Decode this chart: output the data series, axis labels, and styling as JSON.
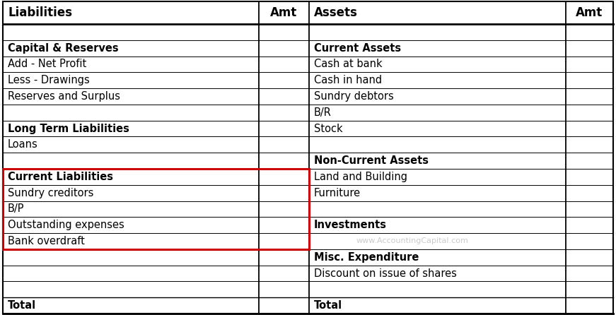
{
  "background_color": "#ffffff",
  "red_border_color": "#cc0000",
  "watermark": "www.AccountingCapital.com",
  "headers": [
    "Liabilities",
    "Amt",
    "Assets",
    "Amt"
  ],
  "rows": [
    {
      "left": "",
      "right": "",
      "left_bold": false,
      "right_bold": false,
      "blank": true
    },
    {
      "left": "Capital & Reserves",
      "right": "Current Assets",
      "left_bold": true,
      "right_bold": true,
      "blank": false
    },
    {
      "left": "Add - Net Profit",
      "right": "Cash at bank",
      "left_bold": false,
      "right_bold": false,
      "blank": false
    },
    {
      "left": "Less - Drawings",
      "right": "Cash in hand",
      "left_bold": false,
      "right_bold": false,
      "blank": false
    },
    {
      "left": "Reserves and Surplus",
      "right": "Sundry debtors",
      "left_bold": false,
      "right_bold": false,
      "blank": false
    },
    {
      "left": "",
      "right": "B/R",
      "left_bold": false,
      "right_bold": false,
      "blank": false
    },
    {
      "left": "Long Term Liabilities",
      "right": "Stock",
      "left_bold": true,
      "right_bold": false,
      "blank": false
    },
    {
      "left": "Loans",
      "right": "",
      "left_bold": false,
      "right_bold": false,
      "blank": false
    },
    {
      "left": "",
      "right": "Non-Current Assets",
      "left_bold": false,
      "right_bold": true,
      "blank": false
    },
    {
      "left": "Current Liabilities",
      "right": "Land and Building",
      "left_bold": true,
      "right_bold": false,
      "blank": false,
      "red_box_start": true
    },
    {
      "left": "Sundry creditors",
      "right": "Furniture",
      "left_bold": false,
      "right_bold": false,
      "blank": false
    },
    {
      "left": "B/P",
      "right": "",
      "left_bold": false,
      "right_bold": false,
      "blank": false
    },
    {
      "left": "Outstanding expenses",
      "right": "Investments",
      "left_bold": false,
      "right_bold": true,
      "blank": false
    },
    {
      "left": "Bank overdraft",
      "right": "",
      "left_bold": false,
      "right_bold": false,
      "blank": false,
      "red_box_end": true,
      "watermark_row": true
    },
    {
      "left": "",
      "right": "Misc. Expenditure",
      "left_bold": false,
      "right_bold": true,
      "blank": false
    },
    {
      "left": "",
      "right": "Discount on issue of shares",
      "left_bold": false,
      "right_bold": false,
      "blank": false
    },
    {
      "left": "",
      "right": "",
      "left_bold": false,
      "right_bold": false,
      "blank": true
    },
    {
      "left": "Total",
      "right": "Total",
      "left_bold": true,
      "right_bold": true,
      "blank": false,
      "is_total": true
    }
  ],
  "font_size": 10.5,
  "header_font_size": 12
}
